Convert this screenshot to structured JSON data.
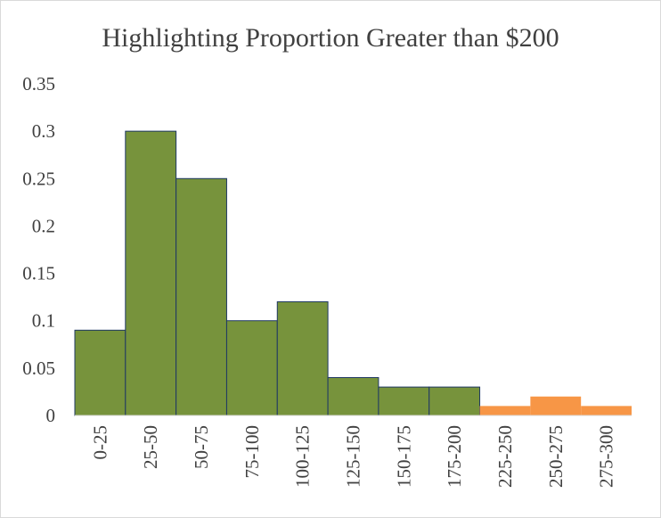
{
  "chart_data": {
    "type": "bar",
    "title": "Highlighting Proportion Greater than $200",
    "xlabel": "",
    "ylabel": "",
    "ylim": [
      0,
      0.35
    ],
    "yticks": [
      "0",
      "0.05",
      "0.1",
      "0.15",
      "0.2",
      "0.25",
      "0.3",
      "0.35"
    ],
    "grid": false,
    "categories": [
      "0-25",
      "25-50",
      "50-75",
      "75-100",
      "100-125",
      "125-150",
      "150-175",
      "175-200",
      "225-250",
      "250-275",
      "275-300"
    ],
    "values": [
      0.09,
      0.3,
      0.25,
      0.1,
      0.12,
      0.04,
      0.03,
      0.03,
      0.01,
      0.02,
      0.01
    ],
    "highlighted": [
      false,
      false,
      false,
      false,
      false,
      false,
      false,
      false,
      true,
      true,
      true
    ],
    "colors": {
      "base": "#77933C",
      "highlight": "#F79646",
      "outline": "#1F3864",
      "axis": "#D9D9D9",
      "text": "#404040"
    }
  }
}
